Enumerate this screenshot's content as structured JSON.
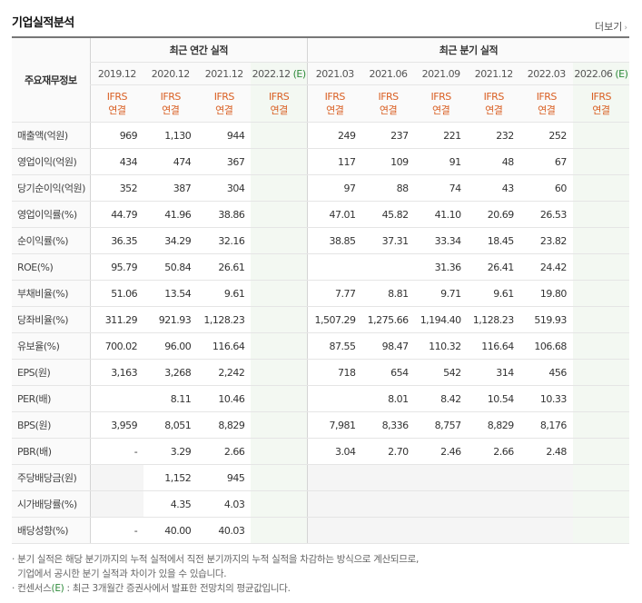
{
  "title": "기업실적분석",
  "more_label": "더보기",
  "header": {
    "row_label": "주요재무정보",
    "annual_group": "최근 연간 실적",
    "quarter_group": "최근 분기 실적",
    "annual_periods": [
      "2019.12",
      "2020.12",
      "2021.12",
      "2022.12"
    ],
    "quarter_periods": [
      "2021.03",
      "2021.06",
      "2021.09",
      "2021.12",
      "2022.03",
      "2022.06"
    ],
    "estimate_mark": "(E)",
    "ifrs_line1": "IFRS",
    "ifrs_line2": "연결"
  },
  "rows": [
    {
      "label": "매출액(억원)",
      "a": [
        "969",
        "1,130",
        "944",
        ""
      ],
      "q": [
        "249",
        "237",
        "221",
        "232",
        "252",
        ""
      ]
    },
    {
      "label": "영업이익(억원)",
      "a": [
        "434",
        "474",
        "367",
        ""
      ],
      "q": [
        "117",
        "109",
        "91",
        "48",
        "67",
        ""
      ]
    },
    {
      "label": "당기순이익(억원)",
      "a": [
        "352",
        "387",
        "304",
        ""
      ],
      "q": [
        "97",
        "88",
        "74",
        "43",
        "60",
        ""
      ]
    },
    {
      "label": "영업이익률(%)",
      "a": [
        "44.79",
        "41.96",
        "38.86",
        ""
      ],
      "q": [
        "47.01",
        "45.82",
        "41.10",
        "20.69",
        "26.53",
        ""
      ]
    },
    {
      "label": "순이익률(%)",
      "a": [
        "36.35",
        "34.29",
        "32.16",
        ""
      ],
      "q": [
        "38.85",
        "37.31",
        "33.34",
        "18.45",
        "23.82",
        ""
      ]
    },
    {
      "label": "ROE(%)",
      "a": [
        "95.79",
        "50.84",
        "26.61",
        ""
      ],
      "q": [
        "",
        "",
        "31.36",
        "26.41",
        "24.42",
        ""
      ]
    },
    {
      "label": "부채비율(%)",
      "a": [
        "51.06",
        "13.54",
        "9.61",
        ""
      ],
      "q": [
        "7.77",
        "8.81",
        "9.71",
        "9.61",
        "19.80",
        ""
      ]
    },
    {
      "label": "당좌비율(%)",
      "a": [
        "311.29",
        "921.93",
        "1,128.23",
        ""
      ],
      "q": [
        "1,507.29",
        "1,275.66",
        "1,194.40",
        "1,128.23",
        "519.93",
        ""
      ]
    },
    {
      "label": "유보율(%)",
      "a": [
        "700.02",
        "96.00",
        "116.64",
        ""
      ],
      "q": [
        "87.55",
        "98.47",
        "110.32",
        "116.64",
        "106.68",
        ""
      ]
    },
    {
      "label": "EPS(원)",
      "a": [
        "3,163",
        "3,268",
        "2,242",
        ""
      ],
      "q": [
        "718",
        "654",
        "542",
        "314",
        "456",
        ""
      ]
    },
    {
      "label": "PER(배)",
      "a": [
        "",
        "8.11",
        "10.46",
        ""
      ],
      "q": [
        "",
        "8.01",
        "8.42",
        "10.54",
        "10.33",
        ""
      ]
    },
    {
      "label": "BPS(원)",
      "a": [
        "3,959",
        "8,051",
        "8,829",
        ""
      ],
      "q": [
        "7,981",
        "8,336",
        "8,757",
        "8,829",
        "8,176",
        ""
      ]
    },
    {
      "label": "PBR(배)",
      "a": [
        "-",
        "3.29",
        "2.66",
        ""
      ],
      "q": [
        "3.04",
        "2.70",
        "2.46",
        "2.66",
        "2.48",
        ""
      ]
    },
    {
      "label": "주당배당금(원)",
      "a": [
        "",
        "1,152",
        "945",
        ""
      ],
      "q": [
        "",
        "",
        "",
        "",
        "",
        ""
      ]
    },
    {
      "label": "시가배당률(%)",
      "a": [
        "",
        "4.35",
        "4.03",
        ""
      ],
      "q": [
        "",
        "",
        "",
        "",
        "",
        ""
      ]
    },
    {
      "label": "배당성향(%)",
      "a": [
        "-",
        "40.00",
        "40.03",
        ""
      ],
      "q": [
        "",
        "",
        "",
        "",
        "",
        ""
      ]
    }
  ],
  "notes": {
    "line1": "분기 실적은 해당 분기까지의 누적 실적에서 직전 분기까지의 누적 실적을 차감하는 방식으로 계산되므로,",
    "line2": "기업에서 공시한 분기 실적과 차이가 있을 수 있습니다.",
    "line3_prefix": "컨센서스",
    "line3_mark": "(E)",
    "line3_suffix": " : 최근 3개월간 증권사에서 발표한 전망치의 평균값입니다."
  }
}
